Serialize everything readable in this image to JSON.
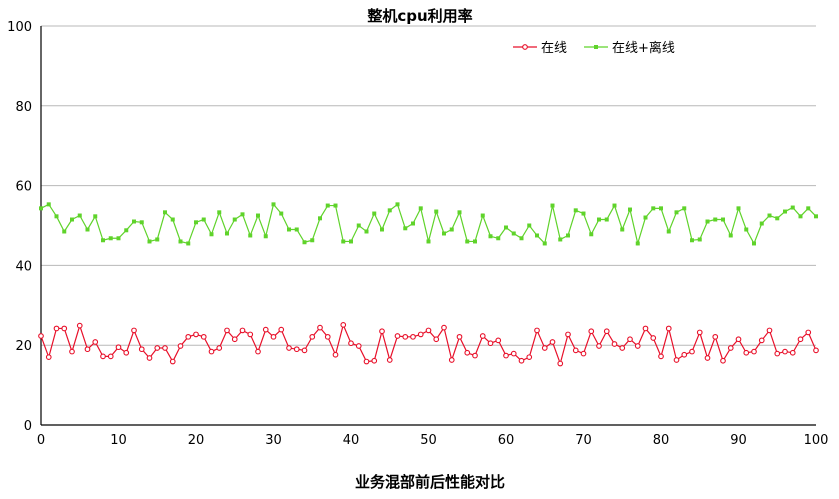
{
  "chart_data": {
    "type": "line",
    "title": "整机cpu利用率",
    "xlabel": "业务混部前后性能对比",
    "ylabel": "",
    "xlim": [
      0,
      100
    ],
    "ylim": [
      0,
      100
    ],
    "x_ticks": [
      "0",
      "10",
      "20",
      "30",
      "40",
      "50",
      "60",
      "70",
      "80",
      "90",
      "100"
    ],
    "y_ticks": [
      "0",
      "20",
      "40",
      "60",
      "80",
      "100"
    ],
    "grid": "horizontal",
    "legend_position": "top-right",
    "x": [
      0,
      1,
      2,
      3,
      4,
      5,
      6,
      7,
      8,
      9,
      10,
      11,
      12,
      13,
      14,
      15,
      16,
      17,
      18,
      19,
      20,
      21,
      22,
      23,
      24,
      25,
      26,
      27,
      28,
      29,
      30,
      31,
      32,
      33,
      34,
      35,
      36,
      37,
      38,
      39,
      40,
      41,
      42,
      43,
      44,
      45,
      46,
      47,
      48,
      49,
      50,
      51,
      52,
      53,
      54,
      55,
      56,
      57,
      58,
      59,
      60,
      61,
      62,
      63,
      64,
      65,
      66,
      67,
      68,
      69,
      70,
      71,
      72,
      73,
      74,
      75,
      76,
      77,
      78,
      79,
      80,
      81,
      82,
      83,
      84,
      85,
      86,
      87,
      88,
      89,
      90,
      91,
      92,
      93,
      94,
      95,
      96,
      97,
      98,
      99,
      100
    ],
    "series": [
      {
        "name": "在线",
        "color": "#e8102a",
        "marker": "circle",
        "values": [
          22.3,
          17.0,
          24.2,
          24.2,
          18.4,
          24.9,
          19.0,
          20.8,
          17.2,
          17.2,
          19.5,
          18.1,
          23.7,
          19.0,
          16.8,
          19.3,
          19.3,
          15.9,
          19.8,
          22.1,
          22.7,
          22.1,
          18.4,
          19.3,
          23.7,
          21.5,
          23.7,
          22.7,
          18.4,
          23.9,
          22.1,
          23.9,
          19.3,
          19.0,
          18.7,
          22.1,
          24.4,
          22.1,
          17.6,
          25.1,
          20.5,
          19.8,
          15.9,
          16.1,
          23.5,
          16.3,
          22.3,
          22.1,
          22.1,
          22.7,
          23.7,
          21.5,
          24.4,
          16.3,
          22.1,
          18.1,
          17.4,
          22.3,
          20.5,
          21.2,
          17.4,
          17.9,
          16.1,
          17.0,
          23.7,
          19.3,
          20.8,
          15.4,
          22.7,
          18.7,
          17.9,
          23.5,
          19.8,
          23.5,
          20.3,
          19.3,
          21.5,
          19.8,
          24.2,
          21.8,
          17.2,
          24.2,
          16.3,
          17.6,
          18.4,
          23.2,
          16.8,
          22.1,
          16.1,
          19.3,
          21.5,
          18.1,
          18.4,
          21.2,
          23.7,
          17.9,
          18.4,
          18.1,
          21.5,
          23.2,
          18.7
        ]
      },
      {
        "name": "在线+离线",
        "color": "#5fd32a",
        "marker": "square",
        "values": [
          54.3,
          55.3,
          52.3,
          48.5,
          51.5,
          52.5,
          49.0,
          52.3,
          46.3,
          46.8,
          46.8,
          48.8,
          51.0,
          50.8,
          46.0,
          46.5,
          53.3,
          51.5,
          46.0,
          45.5,
          50.8,
          51.5,
          47.8,
          53.3,
          48.0,
          51.5,
          52.8,
          47.5,
          52.5,
          47.3,
          55.3,
          53.0,
          49.0,
          49.0,
          45.8,
          46.3,
          51.8,
          55.0,
          55.0,
          46.0,
          46.0,
          50.0,
          48.5,
          53.0,
          49.0,
          53.8,
          55.3,
          49.3,
          50.5,
          54.3,
          46.0,
          53.5,
          48.0,
          49.0,
          53.3,
          46.0,
          46.0,
          52.5,
          47.3,
          46.8,
          49.5,
          48.0,
          46.8,
          50.0,
          47.5,
          45.5,
          55.0,
          46.5,
          47.5,
          53.8,
          53.0,
          47.8,
          51.5,
          51.5,
          55.0,
          49.0,
          54.0,
          45.5,
          52.0,
          54.3,
          54.3,
          48.5,
          53.3,
          54.3,
          46.3,
          46.5,
          51.0,
          51.5,
          51.5,
          47.5,
          54.3,
          49.0,
          45.5,
          50.5,
          52.5,
          51.8,
          53.5,
          54.5,
          52.3,
          54.3,
          52.3
        ]
      }
    ]
  }
}
